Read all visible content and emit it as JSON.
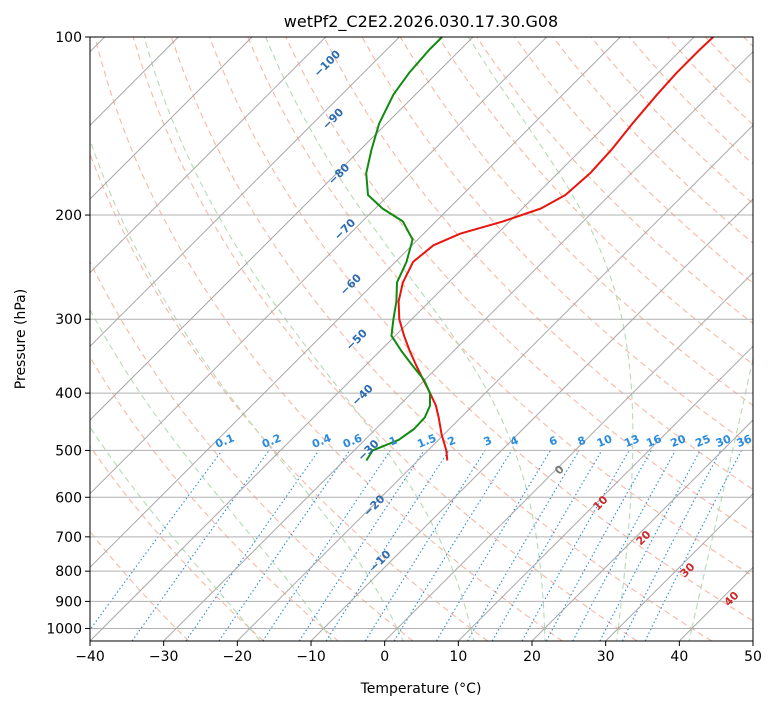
{
  "chart_data": {
    "type": "line",
    "subtype": "skew-T log-P sounding",
    "title": "wetPf2_C2E2.2026.030.17.30.G08",
    "xlabel": "Temperature (°C)",
    "ylabel": "Pressure (hPa)",
    "xlim": [
      -40,
      50
    ],
    "ylim_pressure": [
      1050,
      100
    ],
    "x_ticks": [
      -40,
      -30,
      -20,
      -10,
      0,
      10,
      20,
      30,
      40,
      50
    ],
    "x_tick_labels": [
      "−40",
      "−30",
      "−20",
      "−10",
      "0",
      "10",
      "20",
      "30",
      "40",
      "50"
    ],
    "y_ticks": [
      100,
      200,
      300,
      400,
      500,
      600,
      700,
      800,
      900,
      1000
    ],
    "y_tick_labels": [
      "100",
      "200",
      "300",
      "400",
      "500",
      "600",
      "700",
      "800",
      "900",
      "1000"
    ],
    "grid": true,
    "series": [
      {
        "name": "Temperature",
        "color": "#e8150f",
        "pressure": [
          520,
          500,
          470,
          440,
          420,
          400,
          380,
          360,
          340,
          320,
          300,
          280,
          260,
          240,
          225,
          215,
          205,
          195,
          185,
          170,
          155,
          140,
          125,
          115,
          105,
          100
        ],
        "temperature": [
          -16.0,
          -17.5,
          -20.3,
          -23.0,
          -25.0,
          -27.5,
          -30.2,
          -33.0,
          -35.9,
          -38.8,
          -41.7,
          -44.2,
          -46.2,
          -47.6,
          -47.1,
          -45.0,
          -40.9,
          -37.5,
          -36.0,
          -35.6,
          -35.9,
          -36.6,
          -37.2,
          -37.5,
          -37.5,
          -37.4
        ]
      },
      {
        "name": "Dewpoint",
        "color": "#108a10",
        "pressure": [
          520,
          500,
          480,
          460,
          440,
          420,
          400,
          380,
          360,
          340,
          320,
          300,
          280,
          260,
          240,
          220,
          205,
          195,
          185,
          170,
          155,
          140,
          125,
          115,
          105,
          100
        ],
        "temperature": [
          -27.0,
          -27.5,
          -25.4,
          -24.8,
          -24.9,
          -25.8,
          -27.5,
          -30.1,
          -33.5,
          -37.0,
          -40.5,
          -42.5,
          -44.5,
          -47.0,
          -48.5,
          -50.7,
          -54.5,
          -59.0,
          -62.8,
          -66.0,
          -68.5,
          -71.0,
          -73.0,
          -73.8,
          -74.2,
          -74.2
        ]
      }
    ],
    "dry_adiabats_label": [
      "−100",
      "−90",
      "−80",
      "−70",
      "−60",
      "−50",
      "−40",
      "−30",
      "−20",
      "−10"
    ],
    "mixing_ratio_labels": [
      "0.1",
      "0.2",
      "0.4",
      "0.6",
      "1",
      "1.5",
      "2",
      "3",
      "4",
      "6",
      "8",
      "10",
      "13",
      "16",
      "20",
      "25",
      "30",
      "36"
    ],
    "moist_adiabat_labels": [
      "0",
      "10",
      "20",
      "30",
      "40"
    ]
  }
}
